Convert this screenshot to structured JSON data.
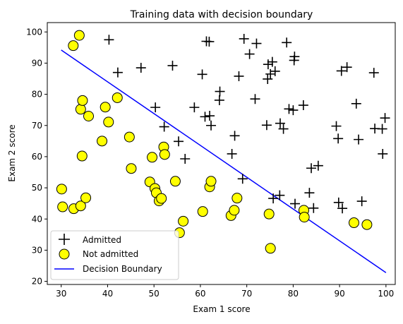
{
  "chart_data": {
    "type": "scatter",
    "title": "Training data with decision boundary",
    "xlabel": "Exam 1 score",
    "ylabel": "Exam 2 score",
    "xlim": [
      27,
      102
    ],
    "ylim": [
      19,
      103
    ],
    "xticks": [
      30,
      40,
      50,
      60,
      70,
      80,
      90,
      100
    ],
    "yticks": [
      20,
      30,
      40,
      50,
      60,
      70,
      80,
      90,
      100
    ],
    "grid": false,
    "legend_position": "lower-left",
    "series": [
      {
        "name": "Admitted",
        "marker": "plus",
        "color": "#000000",
        "points": [
          [
            40.3,
            97.5
          ],
          [
            42.2,
            87
          ],
          [
            47.2,
            88.5
          ],
          [
            50.3,
            75.8
          ],
          [
            52.2,
            69.6
          ],
          [
            54,
            89.2
          ],
          [
            55.3,
            64.9
          ],
          [
            56.7,
            59.3
          ],
          [
            58.7,
            75.8
          ],
          [
            60.4,
            86.4
          ],
          [
            61,
            72.8
          ],
          [
            61.3,
            97
          ],
          [
            61.9,
            96.9
          ],
          [
            62,
            73.1
          ],
          [
            62.3,
            70
          ],
          [
            64.1,
            78.1
          ],
          [
            64.2,
            80.9
          ],
          [
            66.8,
            60.9
          ],
          [
            67.4,
            66.7
          ],
          [
            68.3,
            85.8
          ],
          [
            69.1,
            52.9
          ],
          [
            69.4,
            97.8
          ],
          [
            70.6,
            92.9
          ],
          [
            71.8,
            78.5
          ],
          [
            72.1,
            96.3
          ],
          [
            74.3,
            70.1
          ],
          [
            74.5,
            84.9
          ],
          [
            74.6,
            89.6
          ],
          [
            75.1,
            86.5
          ],
          [
            75.5,
            90.4
          ],
          [
            75.7,
            46.6
          ],
          [
            76.1,
            87.4
          ],
          [
            77.1,
            47.6
          ],
          [
            77.2,
            70.7
          ],
          [
            77.9,
            68.9
          ],
          [
            78.6,
            96.6
          ],
          [
            79.1,
            75.3
          ],
          [
            80,
            74.9
          ],
          [
            80.2,
            90.9
          ],
          [
            80.3,
            92.1
          ],
          [
            80.4,
            44.9
          ],
          [
            82.2,
            76.5
          ],
          [
            83.5,
            48.4
          ],
          [
            83.9,
            56.3
          ],
          [
            84.4,
            43.5
          ],
          [
            85.4,
            57.1
          ],
          [
            89.3,
            69.8
          ],
          [
            89.7,
            65.8
          ],
          [
            89.8,
            45.3
          ],
          [
            90.4,
            87.5
          ],
          [
            90.6,
            43.4
          ],
          [
            91.6,
            88.7
          ],
          [
            93.6,
            77
          ],
          [
            94.1,
            65.5
          ],
          [
            94.8,
            45.7
          ],
          [
            97.4,
            86.9
          ],
          [
            97.6,
            69
          ],
          [
            99.2,
            68.9
          ],
          [
            99.3,
            60.9
          ],
          [
            99.8,
            72.4
          ]
        ]
      },
      {
        "name": "Not admitted",
        "marker": "circle",
        "color": "#ffff00",
        "points": [
          [
            30.1,
            49.6
          ],
          [
            30.3,
            43.9
          ],
          [
            32.6,
            95.6
          ],
          [
            32.7,
            43.3
          ],
          [
            33.9,
            98.9
          ],
          [
            34.2,
            75.2
          ],
          [
            34.2,
            44.2
          ],
          [
            34.5,
            60.2
          ],
          [
            34.6,
            78
          ],
          [
            35.3,
            46.8
          ],
          [
            35.9,
            73
          ],
          [
            38.8,
            65
          ],
          [
            39.5,
            75.9
          ],
          [
            40.2,
            71.1
          ],
          [
            42.1,
            78.9
          ],
          [
            44.7,
            66.3
          ],
          [
            45.1,
            56.2
          ],
          [
            49.1,
            51.9
          ],
          [
            49.6,
            59.8
          ],
          [
            50.2,
            49.8
          ],
          [
            50.5,
            48.4
          ],
          [
            51.1,
            45.8
          ],
          [
            51.6,
            46.6
          ],
          [
            52.1,
            63.1
          ],
          [
            52.3,
            60.7
          ],
          [
            54.6,
            52.1
          ],
          [
            55.5,
            35.6
          ],
          [
            56.3,
            39.3
          ],
          [
            60.5,
            42.4
          ],
          [
            62,
            50.3
          ],
          [
            62.3,
            52.1
          ],
          [
            66.6,
            41.1
          ],
          [
            67.3,
            42.8
          ],
          [
            67.9,
            46.7
          ],
          [
            74.8,
            41.6
          ],
          [
            75.1,
            30.6
          ],
          [
            82.3,
            42.8
          ],
          [
            82.4,
            40.6
          ],
          [
            93.1,
            38.8
          ],
          [
            95.9,
            38.2
          ]
        ]
      },
      {
        "name": "Decision Boundary",
        "marker": "line",
        "color": "#0000ff",
        "points": [
          [
            30,
            94.2
          ],
          [
            100,
            22.8
          ]
        ]
      }
    ]
  }
}
